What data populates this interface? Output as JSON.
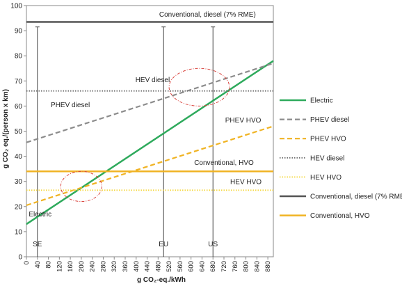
{
  "chart_data": {
    "type": "line",
    "xlabel": "g CO₂-eq./kWh",
    "ylabel": "g CO₂ eq./(person x km)",
    "xlim": [
      0,
      900
    ],
    "ylim": [
      0,
      100
    ],
    "xticks": [
      0,
      40,
      80,
      120,
      160,
      200,
      240,
      280,
      320,
      360,
      400,
      440,
      480,
      520,
      560,
      600,
      640,
      680,
      720,
      760,
      800,
      840,
      880
    ],
    "yticks": [
      0,
      10,
      20,
      30,
      40,
      50,
      60,
      70,
      80,
      90,
      100
    ],
    "grid": false,
    "legend_position": "right",
    "series": [
      {
        "name": "Electric",
        "style": "solid",
        "color": "#2eaa5c",
        "x": [
          0,
          900
        ],
        "y": [
          13,
          78
        ]
      },
      {
        "name": "PHEV diesel",
        "style": "dashed",
        "color": "#8c8c8c",
        "x": [
          0,
          900
        ],
        "y": [
          45.5,
          77
        ]
      },
      {
        "name": "PHEV HVO",
        "style": "dashed",
        "color": "#f0b323",
        "x": [
          0,
          900
        ],
        "y": [
          20.5,
          52
        ]
      },
      {
        "name": "HEV diesel",
        "style": "dotted",
        "color": "#6e6e6e",
        "x": [
          0,
          900
        ],
        "y": [
          66,
          66
        ]
      },
      {
        "name": "HEV HVO",
        "style": "dotted",
        "color": "#f5d840",
        "x": [
          0,
          900
        ],
        "y": [
          26.5,
          26.5
        ]
      },
      {
        "name": "Conventional, diesel (7% RME)",
        "style": "solid",
        "color": "#555555",
        "x": [
          0,
          900
        ],
        "y": [
          93.5,
          93.5
        ]
      },
      {
        "name": "Conventional, HVO",
        "style": "solid",
        "color": "#f0b323",
        "x": [
          0,
          900
        ],
        "y": [
          34,
          34
        ]
      }
    ],
    "reference_lines": [
      {
        "label": "SE",
        "x": 40,
        "y_top": 91.5
      },
      {
        "label": "EU",
        "x": 500,
        "y_top": 91.5
      },
      {
        "label": "US",
        "x": 680,
        "y_top": 91.5
      }
    ],
    "highlight_ellipses": [
      {
        "cx": 200,
        "cy": 28,
        "rx": 75,
        "ry": 6
      },
      {
        "cx": 630,
        "cy": 67.5,
        "rx": 110,
        "ry": 7.5
      }
    ],
    "annotations": [
      {
        "text": "Conventional, diesel (7% RME)",
        "x": 660,
        "y": 95.5
      },
      {
        "text": "HEV diesel",
        "x": 460,
        "y": 69.5
      },
      {
        "text": "PHEV diesel",
        "x": 160,
        "y": 59.5
      },
      {
        "text": "PHEV HVO",
        "x": 790,
        "y": 53.5
      },
      {
        "text": "Conventional, HVO",
        "x": 720,
        "y": 36.5
      },
      {
        "text": "HEV HVO",
        "x": 800,
        "y": 29
      },
      {
        "text": "Electric",
        "x": 50,
        "y": 16
      }
    ]
  }
}
